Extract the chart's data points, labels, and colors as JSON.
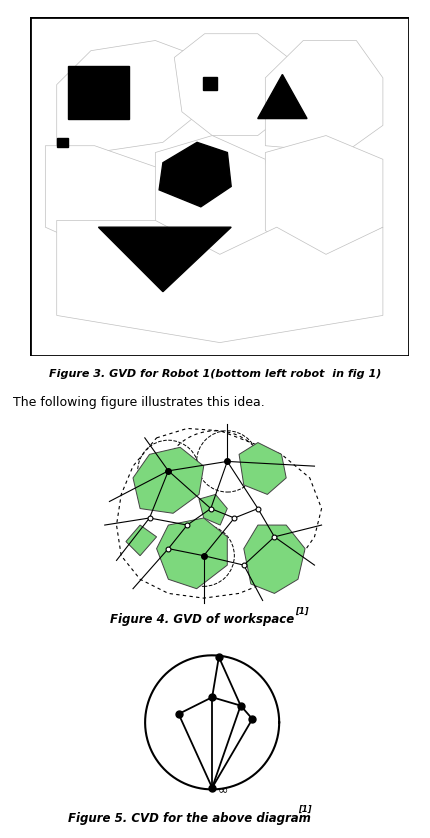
{
  "fig_width": 4.31,
  "fig_height": 8.38,
  "bg_color": "#ffffff",
  "fig3_caption": "Figure 3. GVD for Robot 1(bottom left robot  in fig 1)",
  "fig4_caption": "Figure 4. GVD of workspace",
  "fig4_sup": "[1]",
  "fig5_caption": "Figure 5. CVD for the above diagram",
  "fig5_sup": "[1]",
  "text_body": "The following figure illustrates this idea."
}
